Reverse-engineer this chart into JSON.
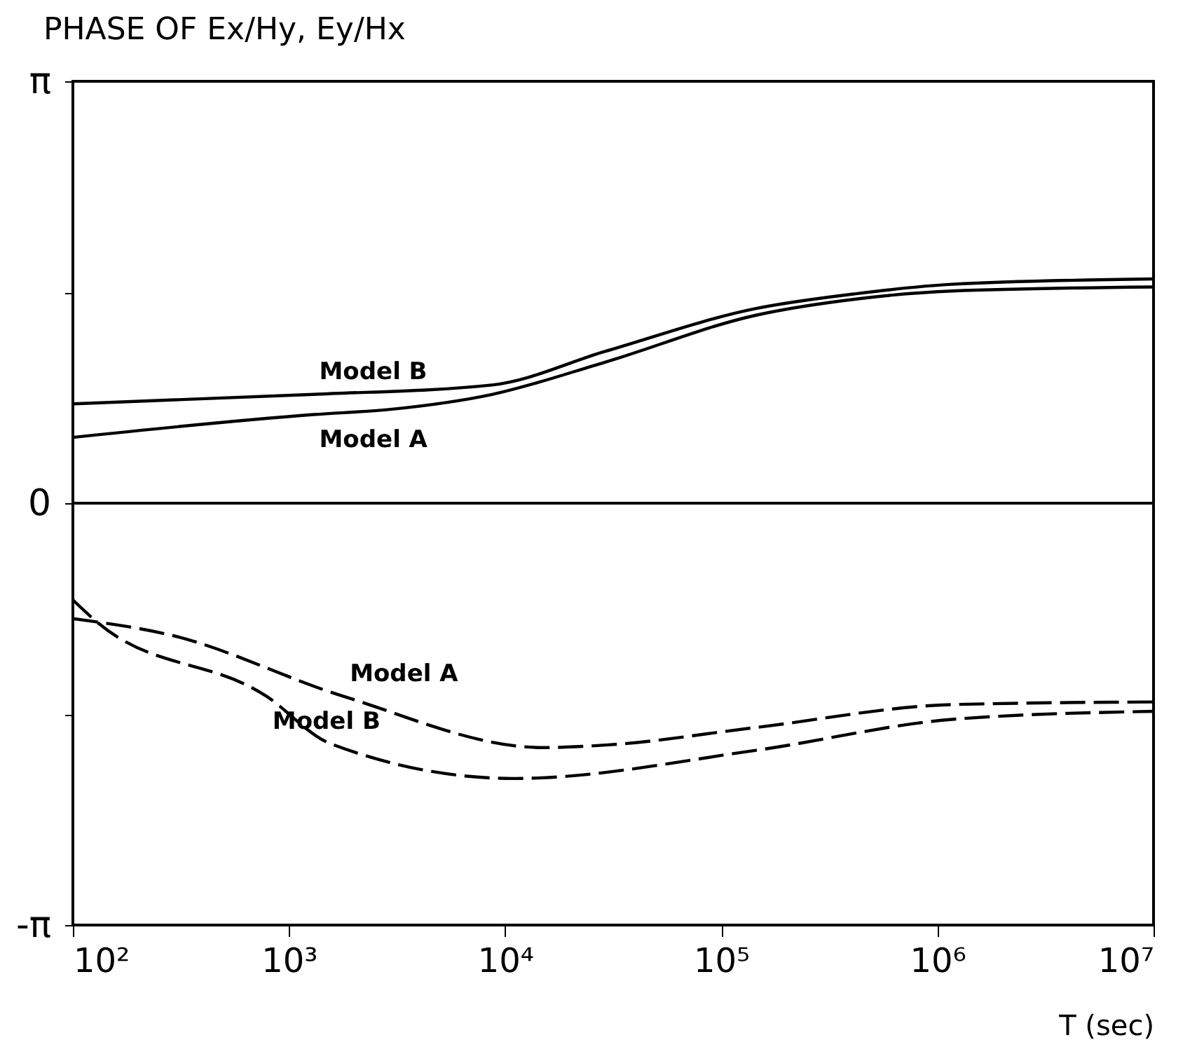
{
  "chart_data": {
    "type": "line",
    "title": "PHASE OF Ex/Hy, Ey/Hx",
    "xlabel": "T (sec)",
    "log": "x",
    "marker": "none",
    "xlim": [
      100,
      10000000
    ],
    "xticks": [
      {
        "value": 100,
        "label": "10²"
      },
      {
        "value": 1000,
        "label": "10³"
      },
      {
        "value": 10000,
        "label": "10⁴"
      },
      {
        "value": 100000,
        "label": "10⁵"
      },
      {
        "value": 1000000,
        "label": "10⁶"
      },
      {
        "value": 10000000,
        "label": "10⁷"
      }
    ],
    "ylim": [
      -3.1416,
      3.1416
    ],
    "yticks": [
      {
        "value": 3.1416,
        "label": "π"
      },
      {
        "value": 1.5708,
        "label": null
      },
      {
        "value": 0,
        "label": "0"
      },
      {
        "value": -1.5708,
        "label": null
      },
      {
        "value": -3.1416,
        "label": "-π"
      }
    ],
    "ref_lines": [
      {
        "axis": "y",
        "value": 0,
        "color": "#000000"
      }
    ],
    "series": [
      {
        "name": "Model B",
        "color": "#000000",
        "line_style": "solid",
        "x": [
          100,
          1300,
          8700,
          29000,
          145000,
          420000,
          1170000,
          10000000
        ],
        "values": [
          0.74,
          0.81,
          0.88,
          1.13,
          1.45,
          1.56,
          1.63,
          1.67
        ]
      },
      {
        "name": "Model A",
        "color": "#000000",
        "line_style": "solid",
        "x": [
          100,
          1300,
          3000,
          8700,
          29000,
          145000,
          420000,
          1170000,
          10000000
        ],
        "values": [
          0.49,
          0.66,
          0.7,
          0.81,
          1.05,
          1.4,
          1.52,
          1.58,
          1.61
        ]
      },
      {
        "name": "Model A",
        "color": "#000000",
        "line_style": "dashed",
        "x": [
          100,
          280,
          1800,
          15000,
          30000,
          145000,
          1170000,
          10000000
        ],
        "values": [
          -0.86,
          -0.98,
          -1.44,
          -1.82,
          -1.8,
          -1.67,
          -1.5,
          -1.48
        ]
      },
      {
        "name": "Model B",
        "color": "#000000",
        "line_style": "dashed",
        "x": [
          100,
          126,
          790,
          1550,
          11000,
          145000,
          1170000,
          10000000
        ],
        "values": [
          -0.72,
          -0.87,
          -1.44,
          -1.79,
          -2.05,
          -1.84,
          -1.61,
          -1.55
        ]
      }
    ]
  }
}
